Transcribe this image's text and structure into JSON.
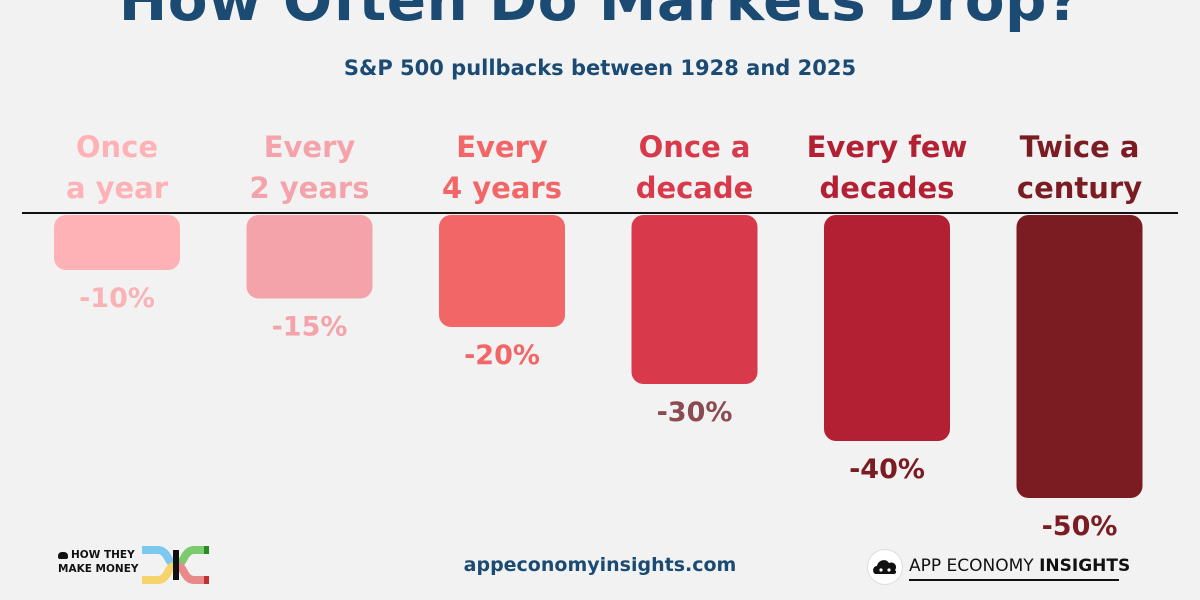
{
  "title": "How Often Do Markets Drop?",
  "subtitle": "S&P 500 pullbacks between 1928 and 2025",
  "footer": {
    "url": "appeconomyinsights.com",
    "left_brand_line1": "HOW THEY",
    "left_brand_line2": "MAKE MONEY",
    "right_brand_regular": "APP ECONOMY ",
    "right_brand_bold": "INSIGHTS"
  },
  "chart_data": {
    "type": "bar",
    "title": "How Often Do Markets Drop?",
    "subtitle": "S&P 500 pullbacks between 1928 and 2025",
    "categories": [
      [
        "Once",
        "a year"
      ],
      [
        "Every",
        "2 years"
      ],
      [
        "Every",
        "4 years"
      ],
      [
        "Once a",
        "decade"
      ],
      [
        "Every few",
        "decades"
      ],
      [
        "Twice a",
        "century"
      ]
    ],
    "values": [
      -10,
      -15,
      -20,
      -30,
      -40,
      -50
    ],
    "value_labels": [
      "-10%",
      "-15%",
      "-20%",
      "-30%",
      "-40%",
      "-50%"
    ],
    "ylim": [
      -50,
      0
    ],
    "grid": false,
    "colors": {
      "bars": [
        "#ffb2b6",
        "#f4a3aa",
        "#f26668",
        "#d83a4b",
        "#b32034",
        "#7a1c22"
      ],
      "category_text": [
        "#ffb2b6",
        "#f4a3aa",
        "#f26668",
        "#d83a4b",
        "#b32034",
        "#7a1c22"
      ],
      "value_text": [
        "#f9b3b7",
        "#f5a3aa",
        "#f26668",
        "#8a4b52",
        "#7a1c22",
        "#7a1c22"
      ]
    }
  }
}
